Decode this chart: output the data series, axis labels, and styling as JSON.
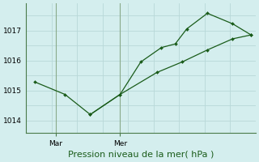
{
  "title": "Pression niveau de la mer( hPa )",
  "bg_color": "#d4eeee",
  "grid_color": "#c8e0e0",
  "line_color": "#1a5c1a",
  "vline_color": "#8aaa8a",
  "ylim": [
    1013.6,
    1017.9
  ],
  "yticks": [
    1014,
    1015,
    1016,
    1017
  ],
  "xtick_labels": [
    "Mar",
    "Mer"
  ],
  "xtick_positions": [
    0.13,
    0.41
  ],
  "vline_positions": [
    0.13,
    0.41
  ],
  "line1_x": [
    0.04,
    0.17,
    0.28,
    0.41,
    0.5,
    0.59,
    0.65,
    0.7,
    0.79,
    0.9,
    0.98
  ],
  "line1_y": [
    1015.28,
    1014.87,
    1014.2,
    1014.87,
    1015.95,
    1016.43,
    1016.55,
    1017.05,
    1017.57,
    1017.22,
    1016.85
  ],
  "line2_x": [
    0.28,
    0.41,
    0.57,
    0.68,
    0.79,
    0.9,
    0.98
  ],
  "line2_y": [
    1014.2,
    1014.87,
    1015.6,
    1015.95,
    1016.35,
    1016.72,
    1016.85
  ],
  "tick_fontsize": 6.5,
  "xlabel_fontsize": 8,
  "xlabel_color": "#1a5c1a",
  "spine_color": "#4a7a4a",
  "figsize": [
    3.2,
    2.0
  ],
  "dpi": 100
}
